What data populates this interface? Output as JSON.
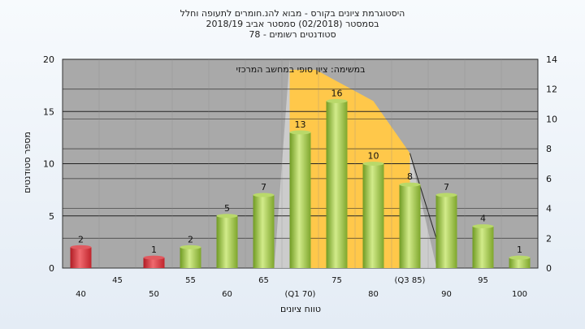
{
  "chart_data": {
    "type": "bar",
    "title_lines": [
      "היסטוגרמת ציונים בקורס - מבוא להנ.חומרים לתעופה וחלל",
      "בסמסטר  (02/2018)  סמסטר אביב 2018/19",
      "סטודנטים רשומים - 78"
    ],
    "annotation": "במשימה: ציון סופי במחשב המרכזי",
    "xlabel": "טווח ציונים",
    "ylabel": "מספר סטודנטים",
    "ylim": [
      0,
      20
    ],
    "y_ticks": [
      0,
      5,
      10,
      15,
      20
    ],
    "y2lim": [
      0,
      14
    ],
    "y2_ticks": [
      0,
      2,
      4,
      6,
      8,
      10,
      12,
      14
    ],
    "categories": [
      "40",
      "45",
      "50",
      "55",
      "60",
      "65",
      "(Q1 70)",
      "75",
      "80",
      "(Q3 85)",
      "90",
      "95",
      "100"
    ],
    "values": [
      2,
      0,
      1,
      2,
      5,
      7,
      13,
      16,
      10,
      8,
      7,
      4,
      1
    ],
    "value_labels": [
      "2",
      "",
      "1",
      "2",
      "5",
      "7",
      "13",
      "16",
      "10",
      "8",
      "7",
      "4",
      "1"
    ],
    "failing_categories": [
      "40",
      "45",
      "50"
    ],
    "colors": {
      "fail_bar": "#d8323a",
      "pass_bar": "#9cc145",
      "plot_bg": "#a9a9a9",
      "interquartile_area": "#ffc84a",
      "light_area": "#cfcfcf"
    },
    "grid": true
  }
}
